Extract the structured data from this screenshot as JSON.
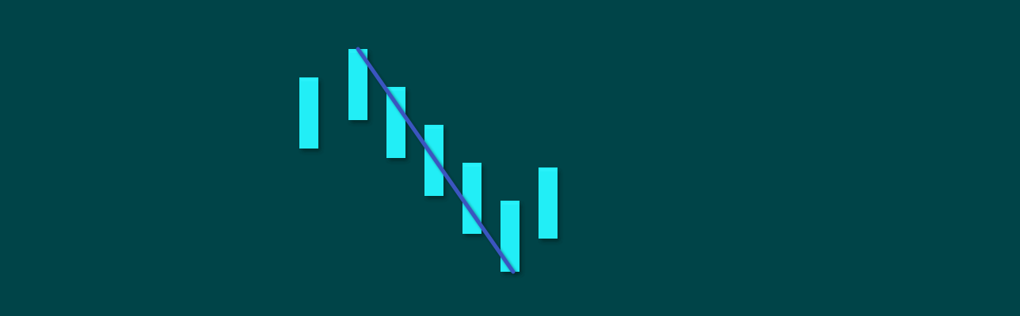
{
  "colors": {
    "background": "#004448",
    "bar": "#22EEF6",
    "bar_highlight": "#2EF4FB",
    "connector": "#3A55C0",
    "shadow": "#00282B"
  },
  "bars": [
    {
      "index": 1,
      "name": "bar-1"
    },
    {
      "index": 2,
      "name": "bar-2"
    },
    {
      "index": 3,
      "name": "bar-3"
    },
    {
      "index": 4,
      "name": "bar-4"
    },
    {
      "index": 5,
      "name": "bar-5"
    },
    {
      "index": 6,
      "name": "bar-6"
    },
    {
      "index": 7,
      "name": "bar-7"
    }
  ],
  "connector": {
    "from_bar": 2,
    "to_bar": 6
  }
}
